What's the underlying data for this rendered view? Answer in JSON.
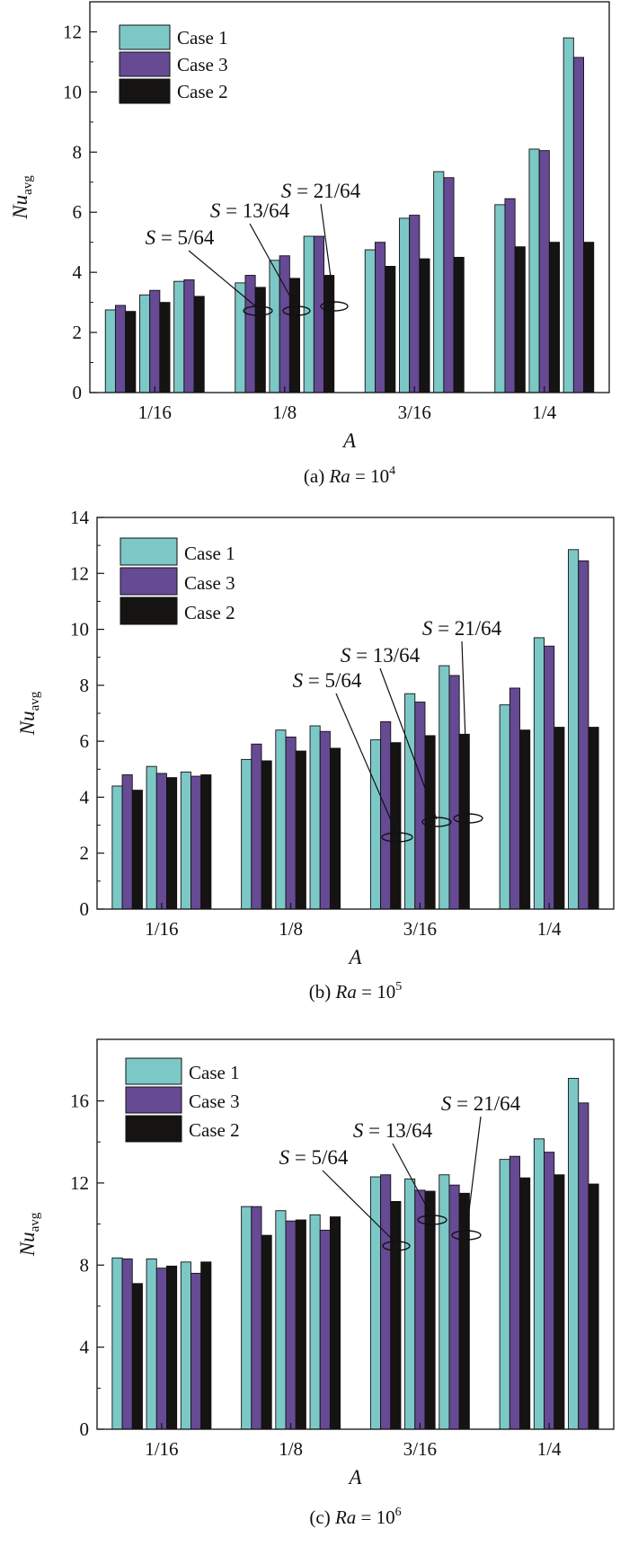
{
  "colors": {
    "case1": "#7cc8c6",
    "case3": "#664a94",
    "case2": "#161313"
  },
  "chart_data": [
    {
      "type": "bar",
      "id": "a",
      "caption_prefix": "(a)",
      "ra_base": "Ra = 10",
      "ra_exp": "4",
      "ylabel_main": "Nu",
      "ylabel_sub": "avg",
      "xlabel": "A",
      "ylim": [
        0,
        13
      ],
      "yticks": [
        "0",
        "2",
        "4",
        "6",
        "8",
        "10",
        "12"
      ],
      "legend": [
        "Case 1",
        "Case 3",
        "Case 2"
      ],
      "categories": [
        "1/16",
        "1/8",
        "3/16",
        "1/4"
      ],
      "spacings": [
        "5/64",
        "13/64",
        "21/64"
      ],
      "series": [
        {
          "name": "Case 1",
          "values": [
            [
              2.75,
              3.25,
              3.7
            ],
            [
              3.65,
              4.4,
              5.2
            ],
            [
              4.75,
              5.8,
              7.35
            ],
            [
              6.25,
              8.1,
              11.8
            ]
          ]
        },
        {
          "name": "Case 3",
          "values": [
            [
              2.9,
              3.4,
              3.75
            ],
            [
              3.9,
              4.55,
              5.2
            ],
            [
              5.0,
              5.9,
              7.15
            ],
            [
              6.45,
              8.05,
              11.15
            ]
          ]
        },
        {
          "name": "Case 2",
          "values": [
            [
              2.7,
              3.0,
              3.2
            ],
            [
              3.5,
              3.8,
              3.9
            ],
            [
              4.2,
              4.45,
              4.5
            ],
            [
              4.85,
              5.0,
              5.0
            ]
          ]
        }
      ],
      "annotations": [
        "S = 5/64",
        "S = 13/64",
        "S = 21/64"
      ]
    },
    {
      "type": "bar",
      "id": "b",
      "caption_prefix": "(b)",
      "ra_base": "Ra = 10",
      "ra_exp": "5",
      "ylabel_main": "Nu",
      "ylabel_sub": "avg",
      "xlabel": "A",
      "ylim": [
        0,
        14
      ],
      "yticks": [
        "0",
        "2",
        "4",
        "6",
        "8",
        "10",
        "12",
        "14"
      ],
      "legend": [
        "Case 1",
        "Case 3",
        "Case 2"
      ],
      "categories": [
        "1/16",
        "1/8",
        "3/16",
        "1/4"
      ],
      "spacings": [
        "5/64",
        "13/64",
        "21/64"
      ],
      "series": [
        {
          "name": "Case 1",
          "values": [
            [
              4.4,
              5.1,
              4.9
            ],
            [
              5.35,
              6.4,
              6.55
            ],
            [
              6.05,
              7.7,
              8.7
            ],
            [
              7.3,
              9.7,
              12.85
            ]
          ]
        },
        {
          "name": "Case 3",
          "values": [
            [
              4.8,
              4.85,
              4.75
            ],
            [
              5.9,
              6.15,
              6.35
            ],
            [
              6.7,
              7.4,
              8.35
            ],
            [
              7.9,
              9.4,
              12.45
            ]
          ]
        },
        {
          "name": "Case 2",
          "values": [
            [
              4.25,
              4.7,
              4.8
            ],
            [
              5.3,
              5.65,
              5.75
            ],
            [
              5.95,
              6.2,
              6.25
            ],
            [
              6.4,
              6.5,
              6.5
            ]
          ]
        }
      ],
      "annotations": [
        "S = 5/64",
        "S = 13/64",
        "S = 21/64"
      ]
    },
    {
      "type": "bar",
      "id": "c",
      "caption_prefix": "(c)",
      "ra_base": "Ra = 10",
      "ra_exp": "6",
      "ylabel_main": "Nu",
      "ylabel_sub": "avg",
      "xlabel": "A",
      "ylim": [
        0,
        19
      ],
      "yticks": [
        "0",
        "4",
        "8",
        "12",
        "16"
      ],
      "legend": [
        "Case 1",
        "Case 3",
        "Case 2"
      ],
      "categories": [
        "1/16",
        "1/8",
        "3/16",
        "1/4"
      ],
      "spacings": [
        "5/64",
        "13/64",
        "21/64"
      ],
      "series": [
        {
          "name": "Case 1",
          "values": [
            [
              8.35,
              8.3,
              8.15
            ],
            [
              10.85,
              10.65,
              10.45
            ],
            [
              12.3,
              12.2,
              12.4
            ],
            [
              13.15,
              14.15,
              17.1
            ]
          ]
        },
        {
          "name": "Case 3",
          "values": [
            [
              8.3,
              7.85,
              7.6
            ],
            [
              10.85,
              10.15,
              9.7
            ],
            [
              12.4,
              11.65,
              11.9
            ],
            [
              13.3,
              13.5,
              15.9
            ]
          ]
        },
        {
          "name": "Case 2",
          "values": [
            [
              7.1,
              7.95,
              8.15
            ],
            [
              9.45,
              10.2,
              10.35
            ],
            [
              11.1,
              11.6,
              11.5
            ],
            [
              12.25,
              12.4,
              11.95
            ]
          ]
        }
      ],
      "annotations": [
        "S = 5/64",
        "S = 13/64",
        "S = 21/64"
      ]
    }
  ]
}
